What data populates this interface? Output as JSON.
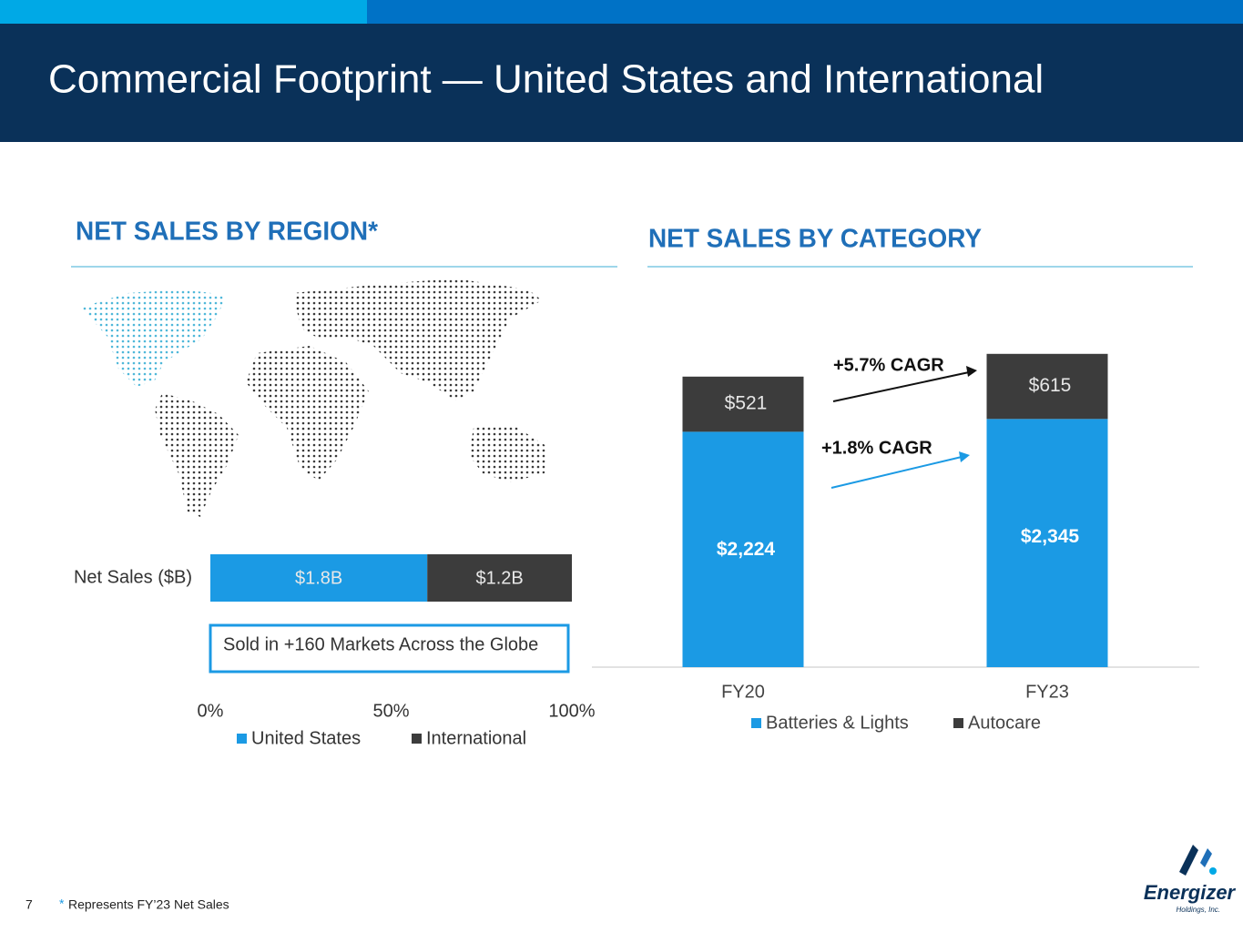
{
  "title": "Commercial Footprint — United States and International",
  "footnote_mark": "*",
  "footnote": "Represents FY’23 Net Sales",
  "page_number": "7",
  "logo": {
    "name": "Energizer",
    "sub": "Holdings, Inc."
  },
  "chart_data": [
    {
      "type": "hbar_stacked",
      "title": "NET SALES BY REGION*",
      "categories": [
        "Net Sales ($B)"
      ],
      "series": [
        {
          "name": "United States",
          "color": "#1b9ae4",
          "values": [
            60
          ],
          "value_labels": [
            "$1.8B"
          ]
        },
        {
          "name": "International",
          "color": "#3c3c3c",
          "values": [
            40
          ],
          "value_labels": [
            "$1.2B"
          ]
        }
      ],
      "xlim": [
        0,
        100
      ],
      "xticks": [
        {
          "value": 0,
          "label": "0%"
        },
        {
          "value": 50,
          "label": "50%"
        },
        {
          "value": 100,
          "label": "100%"
        }
      ],
      "annotations": [
        "Sold in +160 Markets Across the Globe"
      ],
      "legend": "bottom"
    },
    {
      "type": "bar_stacked",
      "title": "NET SALES BY CATEGORY",
      "categories": [
        "FY20",
        "FY23"
      ],
      "series": [
        {
          "name": "Batteries & Lights",
          "color": "#1b9ae4",
          "values": [
            2224,
            2345
          ],
          "value_labels": [
            "$2,224",
            "$2,345"
          ]
        },
        {
          "name": "Autocare",
          "color": "#3c3c3c",
          "values": [
            521,
            615
          ],
          "value_labels": [
            "$521",
            "$615"
          ]
        }
      ],
      "ylim": [
        0,
        3500
      ],
      "annotations": [
        "+5.7% CAGR",
        "+1.8% CAGR"
      ],
      "legend": "bottom"
    }
  ]
}
